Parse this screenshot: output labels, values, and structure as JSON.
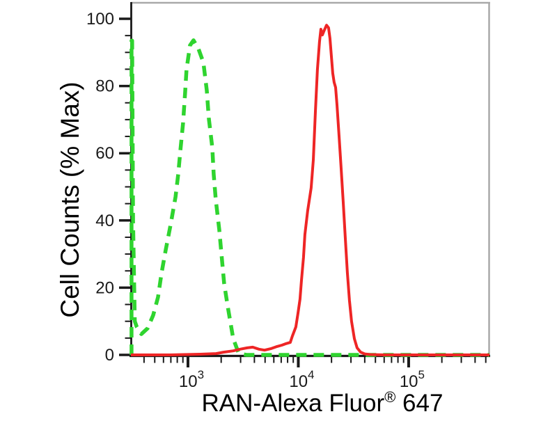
{
  "colors": {
    "background": "#ffffff",
    "frame": "#a9a9a9",
    "axis": "#1a1a1a",
    "tick": "#1a1a1a",
    "label": "#000000",
    "control_green": "#2fd42f",
    "sample_red": "#ee2525"
  },
  "chart_data": {
    "type": "line",
    "subtype": "flow-cytometry-overlay-histogram",
    "title": "",
    "xlabel": {
      "text": "RAN-Alexa Fluor",
      "sup": "®",
      "suffix": " 647"
    },
    "ylabel": "Cell Counts (% Max)",
    "x_scale": "log",
    "x_range": [
      304,
      540000
    ],
    "y_range": [
      0,
      104.5
    ],
    "grid": false,
    "legend": false,
    "x_major_ticks": [
      {
        "value": 1000,
        "label_base": "10",
        "label_exp": "3"
      },
      {
        "value": 10000,
        "label_base": "10",
        "label_exp": "4"
      },
      {
        "value": 100000,
        "label_base": "10",
        "label_exp": "5"
      }
    ],
    "x_minor_decades": [
      100,
      1000,
      10000,
      100000
    ],
    "x_minor_tick_multipliers": [
      2,
      3,
      4,
      5,
      6,
      7,
      8,
      9
    ],
    "y_major_ticks": [
      0,
      20,
      40,
      60,
      80,
      100
    ],
    "y_minor_step": 5,
    "series": [
      {
        "id": "control-green-dashed",
        "color": "#2fd42f",
        "line_style": "dashed",
        "stroke_width": 5.5,
        "dash": [
          15,
          10
        ],
        "peak": {
          "x": 1123,
          "y_pct": 93.6
        },
        "points": [
          [
            308,
            0
          ],
          [
            308,
            93.5
          ],
          [
            312,
            93.5
          ],
          [
            318,
            40
          ],
          [
            330,
            10
          ],
          [
            344,
            8.3
          ],
          [
            378,
            6.2
          ],
          [
            431,
            7.9
          ],
          [
            484,
            11.8
          ],
          [
            536,
            17.2
          ],
          [
            575,
            24.2
          ],
          [
            628,
            31.1
          ],
          [
            696,
            38.7
          ],
          [
            771,
            47.0
          ],
          [
            816,
            53.8
          ],
          [
            853,
            60.7
          ],
          [
            902,
            68.9
          ],
          [
            943,
            78.1
          ],
          [
            971,
            84.9
          ],
          [
            1044,
            92.1
          ],
          [
            1123,
            93.6
          ],
          [
            1245,
            91.1
          ],
          [
            1380,
            87.0
          ],
          [
            1482,
            78.7
          ],
          [
            1546,
            70.4
          ],
          [
            1662,
            61.7
          ],
          [
            1711,
            53.8
          ],
          [
            1787,
            46.2
          ],
          [
            1920,
            37.3
          ],
          [
            2006,
            30.4
          ],
          [
            2127,
            21.3
          ],
          [
            2289,
            14.5
          ],
          [
            2571,
            4.8
          ],
          [
            2889,
            0.4
          ],
          [
            3400,
            0
          ],
          [
            8000,
            0
          ],
          [
            20000,
            0
          ],
          [
            60000,
            0
          ],
          [
            150000,
            0
          ],
          [
            400000,
            0
          ],
          [
            540000,
            0
          ]
        ]
      },
      {
        "id": "ran-red-solid",
        "color": "#ee2525",
        "line_style": "solid",
        "stroke_width": 4,
        "dash": null,
        "peak": {
          "x": 18020,
          "y_pct": 98.1
        },
        "points": [
          [
            304,
            0
          ],
          [
            700,
            0
          ],
          [
            1300,
            0.2
          ],
          [
            1800,
            0.4
          ],
          [
            2100,
            0.8
          ],
          [
            2571,
            1.2
          ],
          [
            2972,
            1.7
          ],
          [
            3438,
            2.1
          ],
          [
            3862,
            2.3
          ],
          [
            4400,
            1.7
          ],
          [
            4943,
            1.4
          ],
          [
            5713,
            1.9
          ],
          [
            6422,
            2.5
          ],
          [
            7106,
            2.9
          ],
          [
            7645,
            3.3
          ],
          [
            8456,
            3.7
          ],
          [
            8836,
            5.6
          ],
          [
            9504,
            8.3
          ],
          [
            9931,
            12.4
          ],
          [
            10370,
            16.6
          ],
          [
            10680,
            22.2
          ],
          [
            11150,
            29.0
          ],
          [
            11480,
            35.8
          ],
          [
            12160,
            42.9
          ],
          [
            13080,
            49.7
          ],
          [
            13670,
            58.0
          ],
          [
            14290,
            72.4
          ],
          [
            14900,
            84.9
          ],
          [
            15570,
            93.2
          ],
          [
            16030,
            96.9
          ],
          [
            16510,
            95.2
          ],
          [
            17250,
            96.7
          ],
          [
            18020,
            98.1
          ],
          [
            18800,
            97.3
          ],
          [
            19360,
            94.2
          ],
          [
            19940,
            89.0
          ],
          [
            20520,
            83.8
          ],
          [
            21130,
            81.1
          ],
          [
            21760,
            79.6
          ],
          [
            22400,
            74.4
          ],
          [
            23400,
            65.1
          ],
          [
            24440,
            55.7
          ],
          [
            25530,
            45.3
          ],
          [
            26660,
            34.9
          ],
          [
            27840,
            24.5
          ],
          [
            29090,
            16.2
          ],
          [
            30380,
            10.0
          ],
          [
            32220,
            4.8
          ],
          [
            34130,
            2.1
          ],
          [
            36720,
            0.8
          ],
          [
            40000,
            0.3
          ],
          [
            44980,
            0.1
          ],
          [
            60000,
            0
          ],
          [
            150000,
            0
          ],
          [
            400000,
            0
          ],
          [
            540000,
            0
          ]
        ]
      }
    ]
  }
}
